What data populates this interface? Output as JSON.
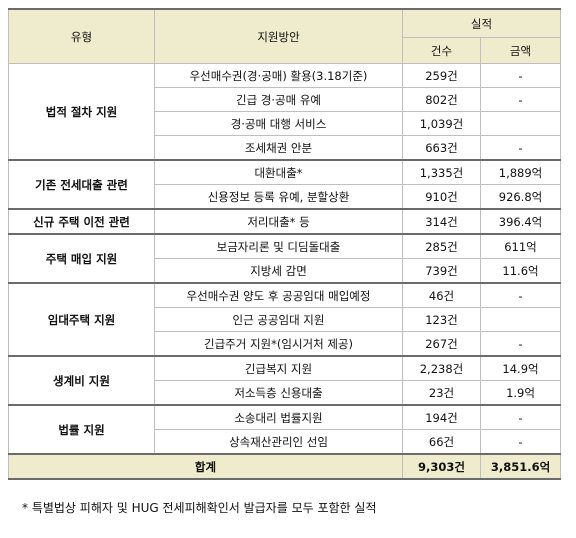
{
  "header": {
    "col_type": "유형",
    "col_plan": "지원방안",
    "col_perf": "실적",
    "col_count": "건수",
    "col_amount": "금액"
  },
  "groups": [
    {
      "category": "법적 절차 지원",
      "rows": [
        {
          "plan": "우선매수권(경·공매) 활용(3.18기준)",
          "count": "259건",
          "amount": "-"
        },
        {
          "plan": "긴급 경·공매 유예",
          "count": "802건",
          "amount": "-"
        },
        {
          "plan": "경·공매 대행 서비스",
          "count": "1,039건",
          "amount": ""
        },
        {
          "plan": "조세채권 안분",
          "count": "663건",
          "amount": "-"
        }
      ]
    },
    {
      "category": "기존 전세대출 관련",
      "rows": [
        {
          "plan": "대환대출*",
          "count": "1,335건",
          "amount": "1,889억"
        },
        {
          "plan": "신용정보 등록 유예, 분할상환",
          "count": "910건",
          "amount": "926.8억"
        }
      ]
    },
    {
      "category": "신규 주택 이전 관련",
      "rows": [
        {
          "plan": "저리대출* 등",
          "count": "314건",
          "amount": "396.4억"
        }
      ]
    },
    {
      "category": "주택 매입 지원",
      "rows": [
        {
          "plan": "보금자리론 및 디딤돌대출",
          "count": "285건",
          "amount": "611억"
        },
        {
          "plan": "지방세 감면",
          "count": "739건",
          "amount": "11.6억"
        }
      ]
    },
    {
      "category": "임대주택 지원",
      "rows": [
        {
          "plan": "우선매수권 양도 후 공공임대 매입예정",
          "count": "46건",
          "amount": "-"
        },
        {
          "plan": "인근 공공임대 지원",
          "count": "123건",
          "amount": ""
        },
        {
          "plan": "긴급주거 지원*(임시거처 제공)",
          "count": "267건",
          "amount": "-"
        }
      ]
    },
    {
      "category": "생계비 지원",
      "rows": [
        {
          "plan": "긴급복지 지원",
          "count": "2,238건",
          "amount": "14.9억"
        },
        {
          "plan": "저소득층 신용대출",
          "count": "23건",
          "amount": "1.9억"
        }
      ]
    },
    {
      "category": "법률 지원",
      "rows": [
        {
          "plan": "소송대리 법률지원",
          "count": "194건",
          "amount": "-"
        },
        {
          "plan": "상속재산관리인 선임",
          "count": "66건",
          "amount": "-"
        }
      ]
    }
  ],
  "total": {
    "label": "합계",
    "count": "9,303건",
    "amount": "3,851.6억"
  },
  "footnote": "* 특별법상 피해자 및 HUG 전세피해확인서 발급자를 모두 포함한 실적"
}
